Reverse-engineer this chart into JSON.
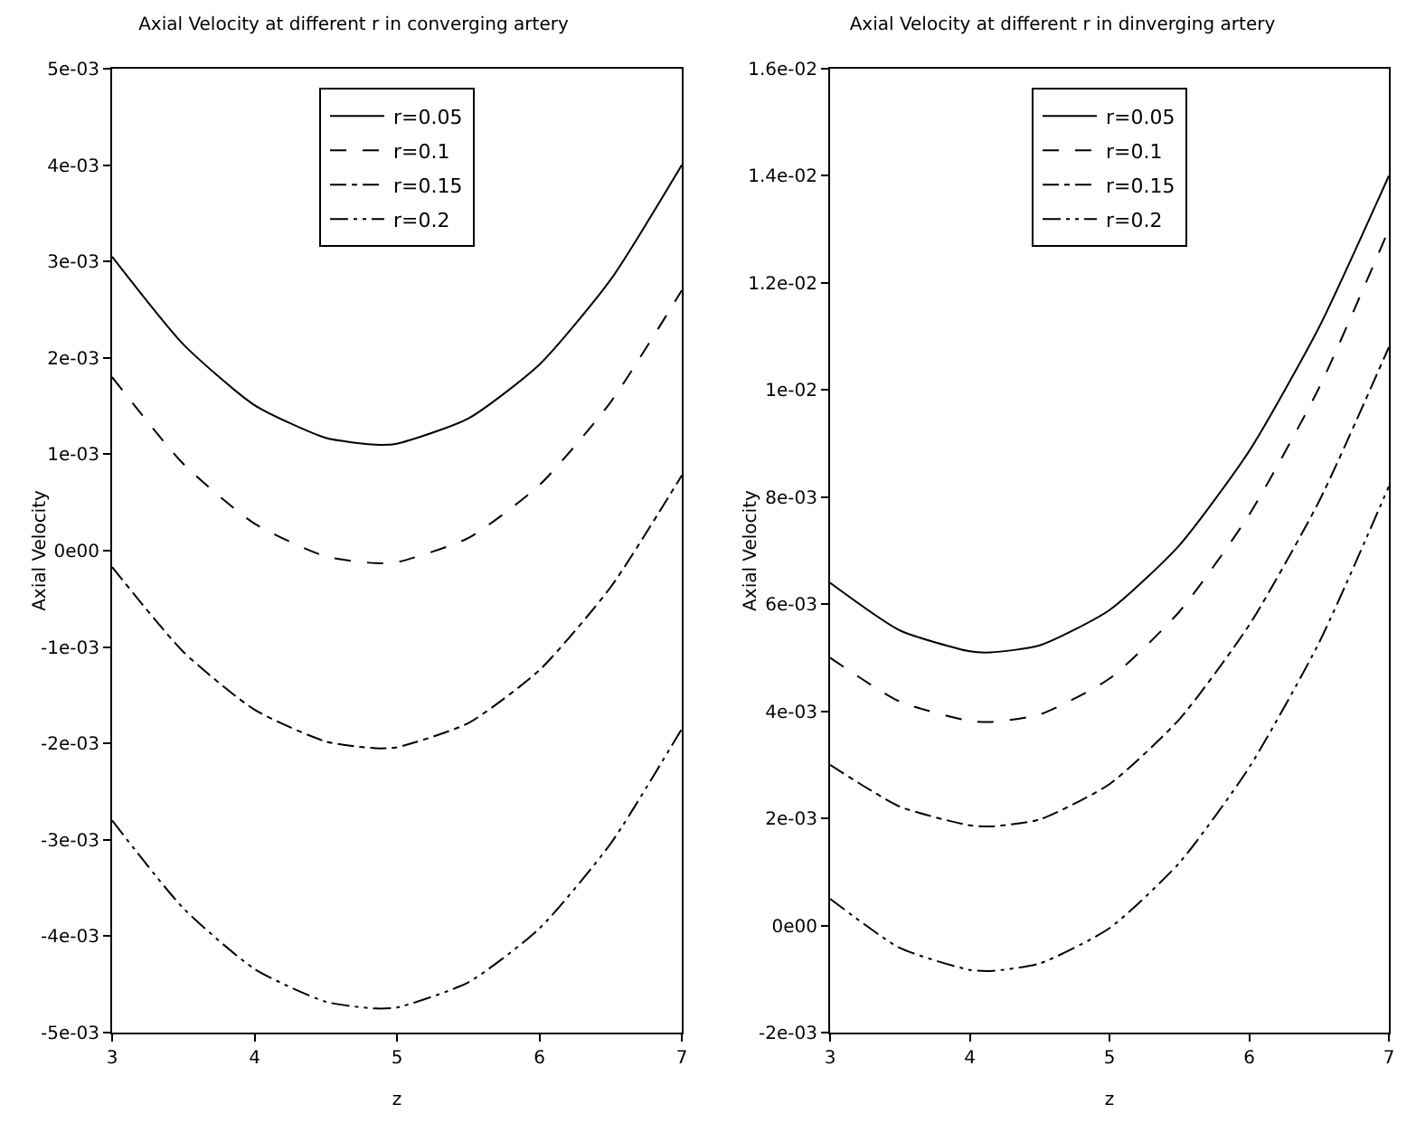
{
  "chart_data": [
    {
      "type": "line",
      "title": "Axial Velocity at different r in converging artery",
      "xlabel": "z",
      "ylabel": "Axial Velocity",
      "x": [
        3,
        3.5,
        4,
        4.5,
        4.85,
        5,
        5.5,
        6,
        6.5,
        7
      ],
      "series": [
        {
          "name": "r=0.05",
          "color": "#000000",
          "line_style": "solid",
          "values": [
            0.00305,
            0.00214,
            0.00151,
            0.00117,
            0.0011,
            0.00111,
            0.00137,
            0.00193,
            0.00281,
            0.004
          ]
        },
        {
          "name": "r=0.1",
          "color": "#000000",
          "line_style": "dashed",
          "values": [
            0.0018,
            0.0009,
            0.00028,
            -6e-05,
            -0.00013,
            -0.00012,
            0.00013,
            0.00068,
            0.00154,
            0.0027
          ]
        },
        {
          "name": "r=0.15",
          "color": "#000000",
          "line_style": "dashdot",
          "values": [
            -0.00017,
            -0.00105,
            -0.00165,
            -0.00198,
            -0.00205,
            -0.00204,
            -0.00179,
            -0.00124,
            -0.00038,
            0.00078
          ]
        },
        {
          "name": "r=0.2",
          "color": "#000000",
          "line_style": "dashdotdot",
          "values": [
            -0.0028,
            -0.00371,
            -0.00434,
            -0.00468,
            -0.00475,
            -0.00474,
            -0.00448,
            -0.00392,
            -0.00304,
            -0.00185
          ]
        }
      ],
      "xlim": [
        3,
        7
      ],
      "xticks": [
        3,
        4,
        5,
        6,
        7
      ],
      "ylim": [
        -0.005,
        0.005
      ],
      "yticks": [
        {
          "value": -0.005,
          "label": "-5e-03"
        },
        {
          "value": -0.004,
          "label": "-4e-03"
        },
        {
          "value": -0.003,
          "label": "-3e-03"
        },
        {
          "value": -0.002,
          "label": "-2e-03"
        },
        {
          "value": -0.001,
          "label": "-1e-03"
        },
        {
          "value": 0,
          "label": "0e00"
        },
        {
          "value": 0.001,
          "label": "1e-03"
        },
        {
          "value": 0.002,
          "label": "2e-03"
        },
        {
          "value": 0.003,
          "label": "3e-03"
        },
        {
          "value": 0.004,
          "label": "4e-03"
        },
        {
          "value": 0.005,
          "label": "5e-03"
        }
      ],
      "grid": false,
      "legend": "top",
      "marker": "none"
    },
    {
      "type": "line",
      "title": "Axial Velocity at different r in dinverging artery",
      "xlabel": "z",
      "ylabel": "Axial Velocity",
      "x": [
        3,
        3.5,
        4,
        4.15,
        4.5,
        5,
        5.5,
        6,
        6.5,
        7
      ],
      "series": [
        {
          "name": "r=0.05",
          "color": "#000000",
          "line_style": "solid",
          "values": [
            0.0064,
            0.00551,
            0.00512,
            0.0051,
            0.00523,
            0.00589,
            0.0071,
            0.00886,
            0.01117,
            0.014
          ]
        },
        {
          "name": "r=0.1",
          "color": "#000000",
          "line_style": "dashed",
          "values": [
            0.005,
            0.00418,
            0.00382,
            0.0038,
            0.00394,
            0.00461,
            0.00586,
            0.00767,
            0.01004,
            0.013
          ]
        },
        {
          "name": "r=0.15",
          "color": "#000000",
          "line_style": "dashdot",
          "values": [
            0.003,
            0.00222,
            0.00187,
            0.00185,
            0.00198,
            0.00264,
            0.00385,
            0.00561,
            0.00792,
            0.0108
          ]
        },
        {
          "name": "r=0.2",
          "color": "#000000",
          "line_style": "dashdotdot",
          "values": [
            0.0005,
            -0.00042,
            -0.00083,
            -0.00085,
            -0.00071,
            -5e-05,
            0.00117,
            0.00295,
            0.00528,
            0.0082
          ]
        }
      ],
      "xlim": [
        3,
        7
      ],
      "xticks": [
        3,
        4,
        5,
        6,
        7
      ],
      "ylim": [
        -0.002,
        0.016
      ],
      "yticks": [
        {
          "value": -0.002,
          "label": "-2e-03"
        },
        {
          "value": 0,
          "label": "0e00"
        },
        {
          "value": 0.002,
          "label": "2e-03"
        },
        {
          "value": 0.004,
          "label": "4e-03"
        },
        {
          "value": 0.006,
          "label": "6e-03"
        },
        {
          "value": 0.008,
          "label": "8e-03"
        },
        {
          "value": 0.01,
          "label": "1e-02"
        },
        {
          "value": 0.012,
          "label": "1.2e-02"
        },
        {
          "value": 0.014,
          "label": "1.4e-02"
        },
        {
          "value": 0.016,
          "label": "1.6e-02"
        }
      ],
      "grid": false,
      "legend": "top",
      "marker": "none"
    }
  ]
}
